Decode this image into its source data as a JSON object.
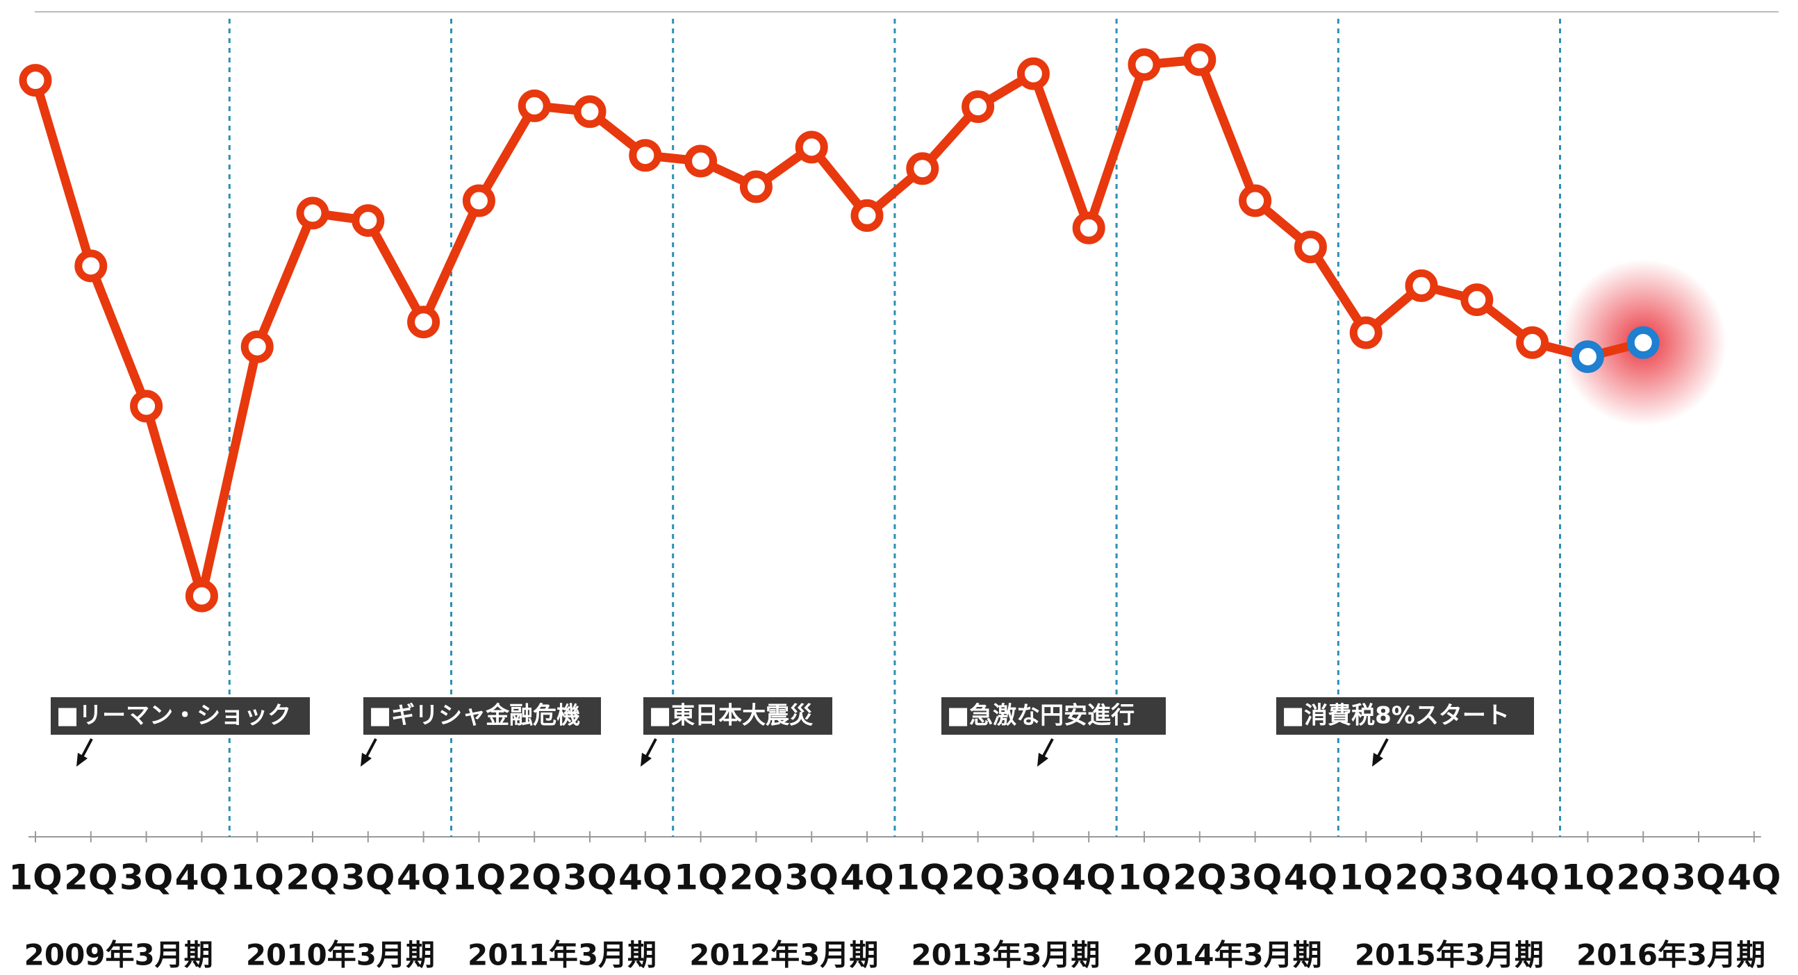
{
  "chart_data": {
    "type": "line",
    "categories": [
      "1Q",
      "2Q",
      "3Q",
      "4Q",
      "1Q",
      "2Q",
      "3Q",
      "4Q",
      "1Q",
      "2Q",
      "3Q",
      "4Q",
      "1Q",
      "2Q",
      "3Q",
      "4Q",
      "1Q",
      "2Q",
      "3Q",
      "4Q",
      "1Q",
      "2Q",
      "3Q",
      "4Q",
      "1Q",
      "2Q",
      "3Q",
      "4Q",
      "1Q",
      "2Q",
      "3Q",
      "4Q"
    ],
    "groups": [
      "2009年3月期",
      "2010年3月期",
      "2011年3月期",
      "2012年3月期",
      "2013年3月期",
      "2014年3月期",
      "2015年3月期",
      "2016年3月期"
    ],
    "values": [
      91.7,
      69.2,
      52.2,
      29.2,
      59.4,
      75.6,
      74.7,
      62.4,
      77.1,
      88.6,
      87.9,
      82.6,
      81.9,
      78.8,
      83.6,
      75.3,
      81.0,
      88.5,
      92.5,
      73.8,
      93.6,
      94.2,
      77.1,
      71.5,
      61.1,
      66.8,
      65.1,
      59.9,
      58.2,
      59.9,
      null,
      null
    ],
    "color": "#e8380e",
    "point_colors": [
      "#e8380e",
      "#e8380e",
      "#e8380e",
      "#e8380e",
      "#e8380e",
      "#e8380e",
      "#e8380e",
      "#e8380e",
      "#e8380e",
      "#e8380e",
      "#e8380e",
      "#e8380e",
      "#e8380e",
      "#e8380e",
      "#e8380e",
      "#e8380e",
      "#e8380e",
      "#e8380e",
      "#e8380e",
      "#e8380e",
      "#e8380e",
      "#e8380e",
      "#e8380e",
      "#e8380e",
      "#e8380e",
      "#e8380e",
      "#e8380e",
      "#e8380e",
      "#1f7fd0",
      "#1f7fd0",
      null,
      null
    ],
    "ylim": [
      0,
      100
    ],
    "annotations": [
      "■リーマン・ショック",
      "■ギリシャ金融危機",
      "■東日本大震災",
      "■急激な円安進行",
      "■消費税8%スタート"
    ]
  }
}
